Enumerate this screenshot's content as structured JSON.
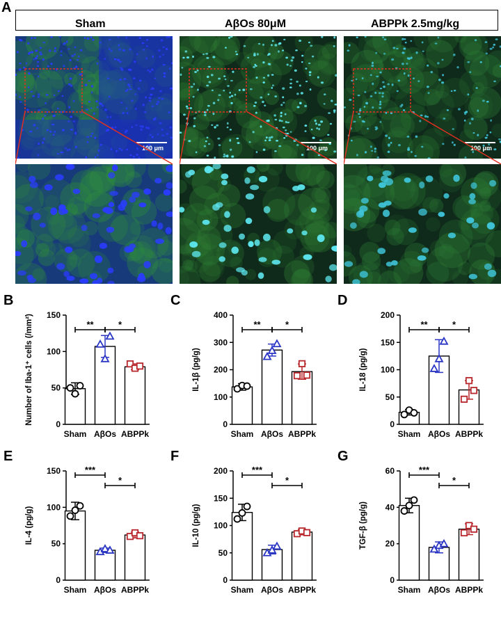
{
  "panel_a": {
    "letter": "A",
    "groups": [
      "Sham",
      "AβOs 80μM",
      "ABPPk 2.5mg/kg"
    ],
    "scale_label": "100 μm"
  },
  "chart_data": [
    {
      "letter": "B",
      "type": "bar",
      "ylabel": "Number of Iba-1⁺ cells (/mm²)",
      "categories": [
        "Sham",
        "AβOs",
        "ABPPk"
      ],
      "ylim": [
        0,
        150
      ],
      "yticks": [
        0,
        50,
        100,
        150
      ],
      "values": [
        49,
        107,
        79
      ],
      "errors": [
        8,
        15,
        4
      ],
      "points": [
        [
          50,
          42,
          53
        ],
        [
          110,
          90,
          121
        ],
        [
          83,
          77,
          80
        ]
      ],
      "colors": [
        "#000000",
        "#2a35c4",
        "#b8262c"
      ],
      "markers": [
        "circle",
        "triangle",
        "square"
      ],
      "significance": [
        {
          "from": 0,
          "to": 1,
          "label": "**",
          "level": 0
        },
        {
          "from": 1,
          "to": 2,
          "label": "*",
          "level": 0
        }
      ]
    },
    {
      "letter": "C",
      "type": "bar",
      "ylabel": "IL-1β (pg/g)",
      "categories": [
        "Sham",
        "AβOs",
        "ABPPk"
      ],
      "ylim": [
        0,
        400
      ],
      "yticks": [
        0,
        100,
        200,
        300,
        400
      ],
      "values": [
        137,
        272,
        193
      ],
      "errors": [
        12,
        22,
        28
      ],
      "points": [
        [
          130,
          142,
          140
        ],
        [
          248,
          270,
          295
        ],
        [
          178,
          222,
          180
        ]
      ],
      "colors": [
        "#000000",
        "#2a35c4",
        "#b8262c"
      ],
      "markers": [
        "circle",
        "triangle",
        "square"
      ],
      "significance": [
        {
          "from": 0,
          "to": 1,
          "label": "**",
          "level": 0
        },
        {
          "from": 1,
          "to": 2,
          "label": "*",
          "level": 0
        }
      ]
    },
    {
      "letter": "D",
      "type": "bar",
      "ylabel": "IL-18 (pg/g)",
      "categories": [
        "Sham",
        "AβOs",
        "ABPPk"
      ],
      "ylim": [
        0,
        200
      ],
      "yticks": [
        0,
        50,
        100,
        150,
        200
      ],
      "values": [
        22,
        125,
        63
      ],
      "errors": [
        5,
        30,
        17
      ],
      "points": [
        [
          18,
          26,
          21
        ],
        [
          102,
          120,
          152
        ],
        [
          46,
          80,
          62
        ]
      ],
      "colors": [
        "#000000",
        "#2a35c4",
        "#b8262c"
      ],
      "markers": [
        "circle",
        "triangle",
        "square"
      ],
      "significance": [
        {
          "from": 0,
          "to": 1,
          "label": "**",
          "level": 0
        },
        {
          "from": 1,
          "to": 2,
          "label": "*",
          "level": 0
        }
      ]
    },
    {
      "letter": "E",
      "type": "bar",
      "ylabel": "IL-4 (pg/g)",
      "categories": [
        "Sham",
        "AβOs",
        "ABPPk"
      ],
      "ylim": [
        0,
        150
      ],
      "yticks": [
        0,
        50,
        100,
        150
      ],
      "values": [
        95,
        41,
        62
      ],
      "errors": [
        12,
        3,
        4
      ],
      "points": [
        [
          88,
          96,
          102
        ],
        [
          39,
          43,
          41
        ],
        [
          60,
          65,
          61
        ]
      ],
      "colors": [
        "#000000",
        "#2a35c4",
        "#b8262c"
      ],
      "markers": [
        "circle",
        "triangle",
        "square"
      ],
      "significance": [
        {
          "from": 0,
          "to": 1,
          "label": "***",
          "level": 1
        },
        {
          "from": 1,
          "to": 2,
          "label": "*",
          "level": 0
        }
      ]
    },
    {
      "letter": "F",
      "type": "bar",
      "ylabel": "IL-10 (pg/g)",
      "categories": [
        "Sham",
        "AβOs",
        "ABPPk"
      ],
      "ylim": [
        0,
        200
      ],
      "yticks": [
        0,
        50,
        100,
        150,
        200
      ],
      "values": [
        124,
        56,
        88
      ],
      "errors": [
        15,
        8,
        5
      ],
      "points": [
        [
          112,
          123,
          135
        ],
        [
          50,
          55,
          62
        ],
        [
          85,
          90,
          87
        ]
      ],
      "colors": [
        "#000000",
        "#2a35c4",
        "#b8262c"
      ],
      "markers": [
        "circle",
        "triangle",
        "square"
      ],
      "significance": [
        {
          "from": 0,
          "to": 1,
          "label": "***",
          "level": 1
        },
        {
          "from": 1,
          "to": 2,
          "label": "*",
          "level": 0
        }
      ]
    },
    {
      "letter": "G",
      "type": "bar",
      "ylabel": "TGF-β (pg/g)",
      "categories": [
        "Sham",
        "AβOs",
        "ABPPk"
      ],
      "ylim": [
        0,
        60
      ],
      "yticks": [
        0,
        20,
        40,
        60
      ],
      "values": [
        41,
        18,
        28
      ],
      "errors": [
        4,
        3,
        3
      ],
      "points": [
        [
          38,
          41,
          44
        ],
        [
          17,
          19,
          20
        ],
        [
          26,
          30,
          28
        ]
      ],
      "colors": [
        "#000000",
        "#2a35c4",
        "#b8262c"
      ],
      "markers": [
        "circle",
        "triangle",
        "square"
      ],
      "significance": [
        {
          "from": 0,
          "to": 1,
          "label": "***",
          "level": 1
        },
        {
          "from": 1,
          "to": 2,
          "label": "*",
          "level": 0
        }
      ]
    }
  ]
}
